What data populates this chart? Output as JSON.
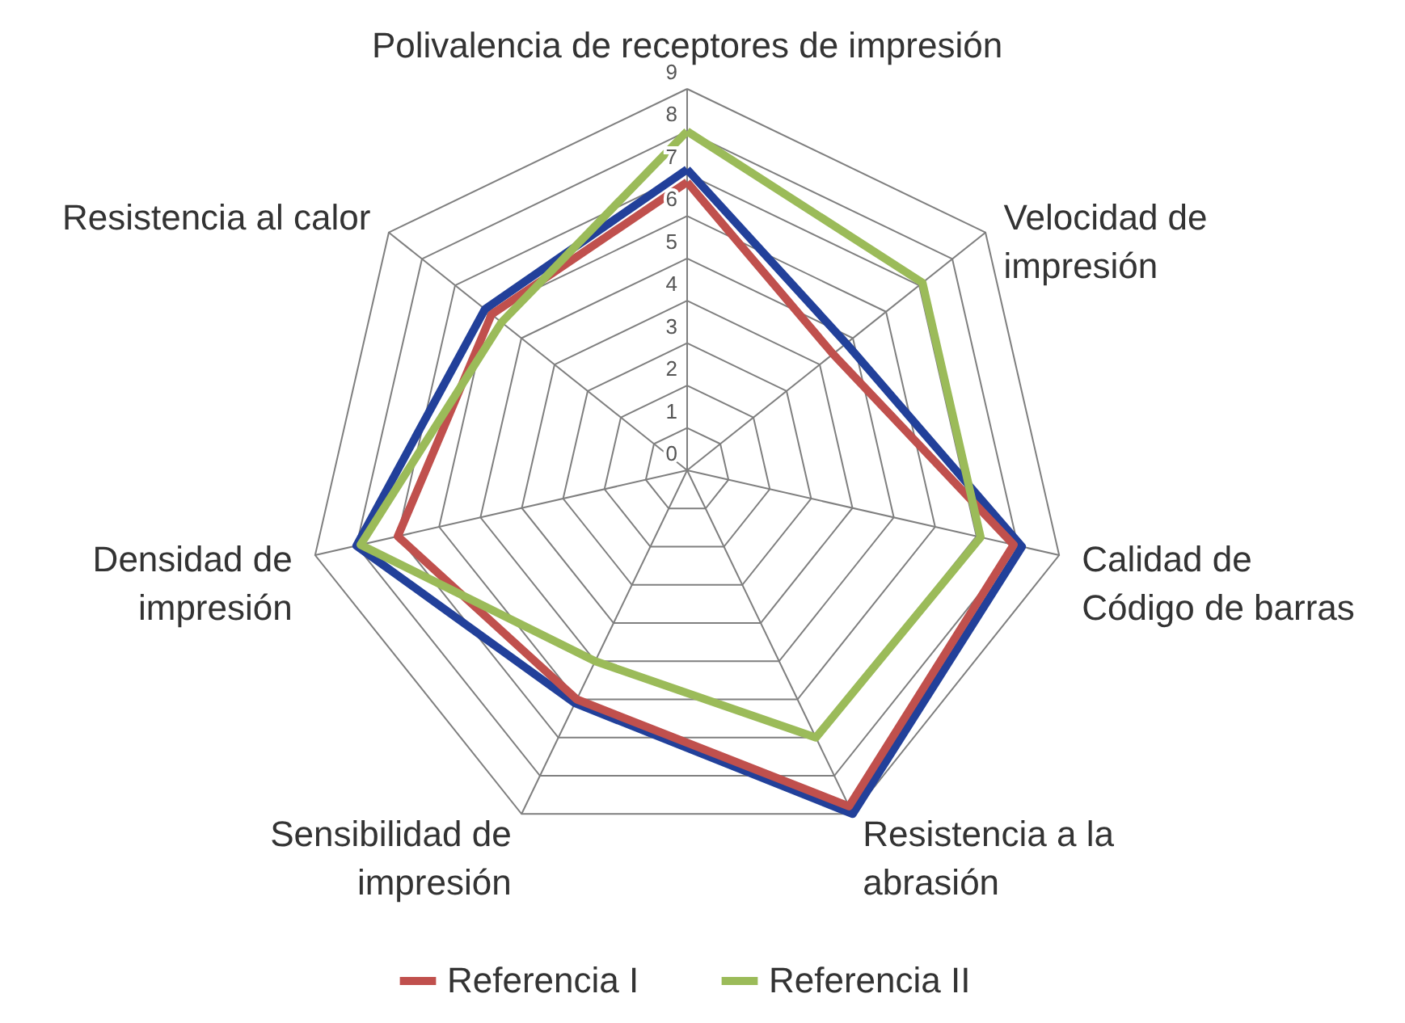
{
  "chart_data": {
    "type": "radar",
    "categories": [
      "Polivalencia de receptores de impresión",
      "Velocidad de impresión",
      "Calidad de Código de barras",
      "Resistencia a la abrasión",
      "Sensibilidad de impresión",
      "Densidad de impresión",
      "Resistencia al calor"
    ],
    "ylim": [
      0,
      9
    ],
    "yticks": [
      0,
      1,
      2,
      3,
      4,
      5,
      6,
      7,
      8,
      9
    ],
    "grid": true,
    "legend": "bottom",
    "series": [
      {
        "color": "#22409a",
        "values": [
          7.1,
          4.8,
          8.1,
          9.0,
          6.1,
          8.0,
          6.1
        ]
      },
      {
        "name": "Referencia I",
        "color": "#c0504d",
        "values": [
          6.8,
          4.4,
          7.9,
          8.8,
          6.0,
          7.0,
          5.9
        ]
      },
      {
        "name": "Referencia II",
        "color": "#9bbb59",
        "values": [
          8.0,
          7.1,
          7.1,
          7.0,
          5.0,
          7.9,
          5.6
        ]
      }
    ]
  }
}
